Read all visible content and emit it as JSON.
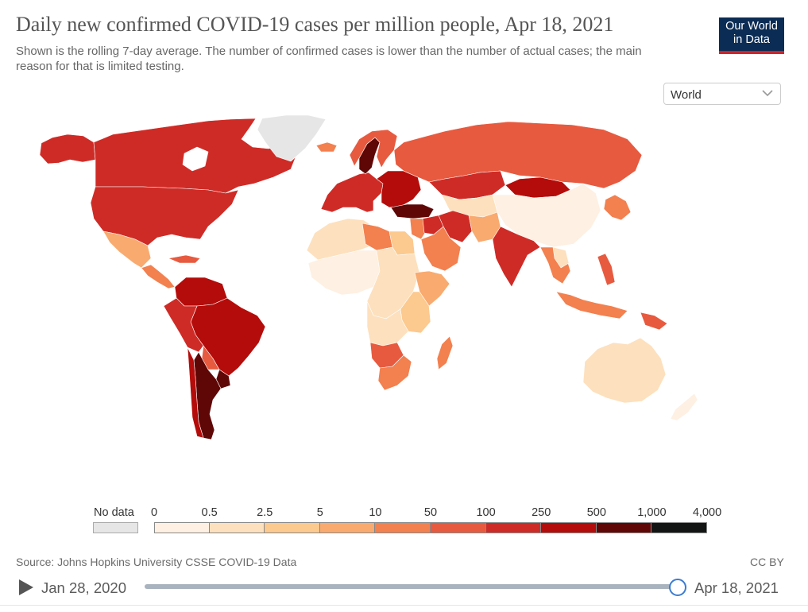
{
  "header": {
    "title": "Daily new confirmed COVID-19 cases per million people, Apr 18, 2021",
    "subtitle": "Shown is the rolling 7-day average. The number of confirmed cases is lower than the number of actual cases; the main reason for that is limited testing.",
    "logo_line1": "Our World",
    "logo_line2": "in Data"
  },
  "region_select": {
    "selected": "World"
  },
  "legend": {
    "no_data_label": "No data",
    "no_data_color": "#e6e6e6",
    "ticks": [
      "0",
      "0.5",
      "2.5",
      "5",
      "10",
      "50",
      "100",
      "250",
      "500",
      "1,000",
      "4,000"
    ],
    "bins": [
      {
        "from": "0",
        "to": "0.5",
        "color": "#fef0e2"
      },
      {
        "from": "0.5",
        "to": "2.5",
        "color": "#fde0bd"
      },
      {
        "from": "2.5",
        "to": "5",
        "color": "#fcc98f"
      },
      {
        "from": "5",
        "to": "10",
        "color": "#f9aa6f"
      },
      {
        "from": "10",
        "to": "50",
        "color": "#f3804f"
      },
      {
        "from": "50",
        "to": "100",
        "color": "#e75a3f"
      },
      {
        "from": "100",
        "to": "250",
        "color": "#cf2b26"
      },
      {
        "from": "250",
        "to": "500",
        "color": "#b40c0a"
      },
      {
        "from": "500",
        "to": "1,000",
        "color": "#5e0706"
      },
      {
        "from": "1,000",
        "to": "4,000",
        "color": "#131515"
      }
    ]
  },
  "regions": [
    {
      "name": "Canada",
      "color": "#cf2b26"
    },
    {
      "name": "United States",
      "color": "#cf2b26"
    },
    {
      "name": "Alaska",
      "color": "#cf2b26"
    },
    {
      "name": "Greenland",
      "color": "#e6e6e6"
    },
    {
      "name": "Mexico",
      "color": "#f9aa6f"
    },
    {
      "name": "Central America",
      "color": "#f3804f"
    },
    {
      "name": "Caribbean",
      "color": "#e75a3f"
    },
    {
      "name": "Colombia & Venezuela",
      "color": "#b40c0a"
    },
    {
      "name": "Brazil",
      "color": "#b40c0a"
    },
    {
      "name": "Peru & Bolivia",
      "color": "#cf2b26"
    },
    {
      "name": "Argentina",
      "color": "#5e0706"
    },
    {
      "name": "Chile",
      "color": "#b40c0a"
    },
    {
      "name": "Paraguay",
      "color": "#e75a3f"
    },
    {
      "name": "Uruguay",
      "color": "#5e0706"
    },
    {
      "name": "Iceland",
      "color": "#f3804f"
    },
    {
      "name": "Western Europe",
      "color": "#cf2b26"
    },
    {
      "name": "Sweden",
      "color": "#5e0706"
    },
    {
      "name": "Norway & Finland",
      "color": "#e75a3f"
    },
    {
      "name": "Eastern Europe",
      "color": "#b40c0a"
    },
    {
      "name": "Turkey",
      "color": "#5e0706"
    },
    {
      "name": "Russia",
      "color": "#e75a3f"
    },
    {
      "name": "Kazakhstan",
      "color": "#cf2b26"
    },
    {
      "name": "Mongolia",
      "color": "#b40c0a"
    },
    {
      "name": "China",
      "color": "#fef0e2"
    },
    {
      "name": "Middle East",
      "color": "#f3804f"
    },
    {
      "name": "Iran",
      "color": "#cf2b26"
    },
    {
      "name": "Iraq & Jordan",
      "color": "#cf2b26"
    },
    {
      "name": "Saudi Arabia & Gulf",
      "color": "#f3804f"
    },
    {
      "name": "Central Asia",
      "color": "#fde0bd"
    },
    {
      "name": "India",
      "color": "#cf2b26"
    },
    {
      "name": "Pakistan & Afghanistan",
      "color": "#f9aa6f"
    },
    {
      "name": "Southeast Asia",
      "color": "#f3804f"
    },
    {
      "name": "Thailand",
      "color": "#fde0bd"
    },
    {
      "name": "Japan & Korea",
      "color": "#f3804f"
    },
    {
      "name": "Philippines",
      "color": "#e75a3f"
    },
    {
      "name": "Indonesia",
      "color": "#f3804f"
    },
    {
      "name": "Papua New Guinea",
      "color": "#e75a3f"
    },
    {
      "name": "Australia",
      "color": "#fde0bd"
    },
    {
      "name": "New Zealand",
      "color": "#fef0e2"
    },
    {
      "name": "North Africa",
      "color": "#fde0bd"
    },
    {
      "name": "Libya & Tunisia",
      "color": "#f3804f"
    },
    {
      "name": "Egypt",
      "color": "#fcc98f"
    },
    {
      "name": "West Africa",
      "color": "#fef0e2"
    },
    {
      "name": "Central Africa",
      "color": "#fde0bd"
    },
    {
      "name": "Horn of Africa",
      "color": "#f9aa6f"
    },
    {
      "name": "East Africa",
      "color": "#fcc98f"
    },
    {
      "name": "Angola & Zambia",
      "color": "#fde0bd"
    },
    {
      "name": "Namibia & Botswana",
      "color": "#e75a3f"
    },
    {
      "name": "South Africa",
      "color": "#f3804f"
    },
    {
      "name": "Madagascar",
      "color": "#f3804f"
    }
  ],
  "footer": {
    "source": "Source: Johns Hopkins University CSSE COVID-19 Data",
    "license": "CC BY"
  },
  "timeline": {
    "start_date": "Jan 28, 2020",
    "end_date": "Apr 18, 2021",
    "position": 1.0
  }
}
